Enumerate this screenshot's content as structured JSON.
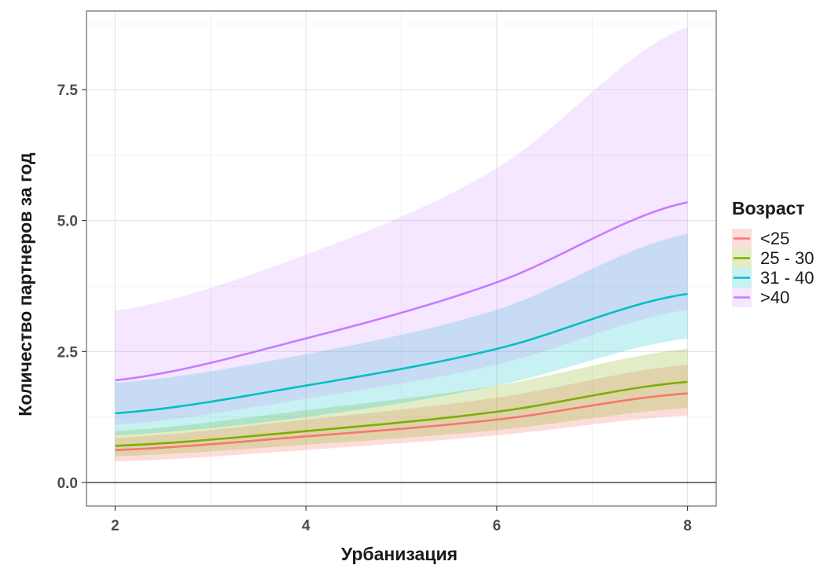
{
  "chart_data": {
    "type": "line",
    "xlabel": "Урбанизация",
    "ylabel": "Количество партнеров за год",
    "x_ticks": [
      2,
      4,
      6,
      8
    ],
    "y_ticks": [
      "0.0",
      "2.5",
      "5.0",
      "7.5"
    ],
    "xlim": [
      1.7,
      8.3
    ],
    "ylim": [
      -0.45,
      9.0
    ],
    "grid": true,
    "zero_line": true,
    "legend_title": "Возраст",
    "legend_position": "right",
    "series": [
      {
        "name": "<25",
        "color": "#f8766d",
        "ribbon_opacity": 0.25,
        "x": [
          2,
          4,
          6,
          8
        ],
        "y": [
          0.62,
          0.88,
          1.2,
          1.7
        ],
        "lower": [
          0.4,
          0.62,
          0.9,
          1.28
        ],
        "upper": [
          0.85,
          1.2,
          1.62,
          2.25
        ]
      },
      {
        "name": "25 - 30",
        "color": "#7cae00",
        "ribbon_opacity": 0.22,
        "x": [
          2,
          4,
          6,
          8
        ],
        "y": [
          0.7,
          0.98,
          1.35,
          1.92
        ],
        "lower": [
          0.5,
          0.72,
          1.0,
          1.42
        ],
        "upper": [
          0.98,
          1.38,
          1.85,
          2.55
        ]
      },
      {
        "name": "31 - 40",
        "color": "#00bfc4",
        "ribbon_opacity": 0.22,
        "x": [
          2,
          4,
          6,
          8
        ],
        "y": [
          1.32,
          1.85,
          2.55,
          3.6
        ],
        "lower": [
          0.9,
          1.25,
          1.85,
          2.75
        ],
        "upper": [
          1.9,
          2.45,
          3.3,
          4.75
        ]
      },
      {
        "name": ">40",
        "color": "#c77cff",
        "ribbon_opacity": 0.18,
        "x": [
          2,
          4,
          6,
          8
        ],
        "y": [
          1.95,
          2.75,
          3.82,
          5.35
        ],
        "lower": [
          1.1,
          1.6,
          2.25,
          3.3
        ],
        "upper": [
          3.28,
          4.35,
          6.0,
          8.7
        ]
      }
    ]
  }
}
